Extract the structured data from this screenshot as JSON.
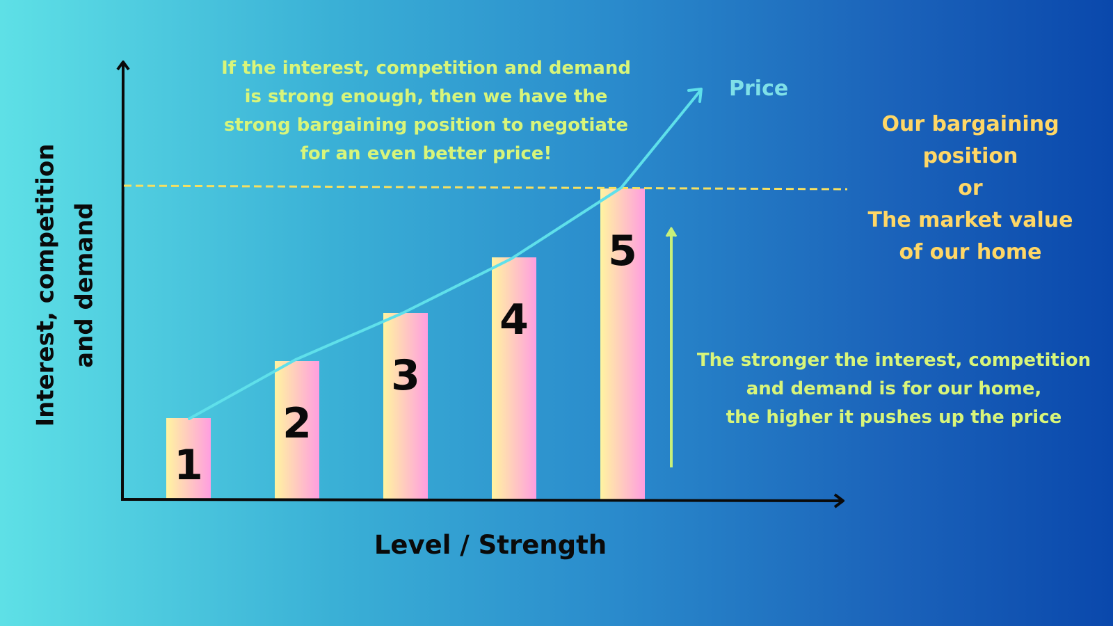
{
  "chart_data": {
    "type": "bar",
    "categories": [
      "1",
      "2",
      "3",
      "4",
      "5"
    ],
    "values": [
      1,
      2,
      3,
      4,
      5
    ],
    "bar_labels": [
      "1",
      "2",
      "3",
      "4",
      "5"
    ],
    "xlabel": "Level / Strength",
    "ylabel_lines": [
      "Interest, competition",
      "and demand"
    ],
    "price_line_label": "Price",
    "annotation_top_lines": [
      "If the interest, competition and demand",
      "is strong enough, then we have the",
      "strong bargaining position to negotiate",
      "for an even better price!"
    ],
    "annotation_right_lines": [
      "Our bargaining",
      "position",
      "or",
      "The market value",
      "of our home"
    ],
    "annotation_bottom_lines": [
      "The stronger the interest, competition",
      "and demand is for our home,",
      "the higher it pushes up the price"
    ],
    "grid": false,
    "colors": {
      "bar_top": "#ff9ed8",
      "bar_bottom": "#ffeea8",
      "price_line": "#5fe0ea",
      "dashed_line": "#f6e060",
      "up_arrow": "#c8f07a",
      "axes": "#0a0a0a",
      "annotation_green": "#d8f57a",
      "annotation_yellow": "#ffd766"
    }
  }
}
